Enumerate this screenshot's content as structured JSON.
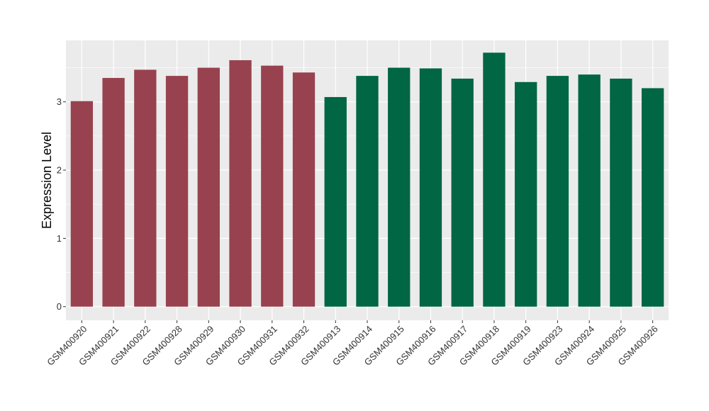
{
  "chart_data": {
    "type": "bar",
    "title": "",
    "xlabel": "",
    "ylabel": "Expression Level",
    "ylim": [
      -0.2,
      3.9
    ],
    "yticks": [
      0,
      1,
      2,
      3
    ],
    "grid": true,
    "legend": "none",
    "categories": [
      "GSM400920",
      "GSM400921",
      "GSM400922",
      "GSM400928",
      "GSM400929",
      "GSM400930",
      "GSM400931",
      "GSM400932",
      "GSM400913",
      "GSM400914",
      "GSM400915",
      "GSM400916",
      "GSM400917",
      "GSM400918",
      "GSM400919",
      "GSM400923",
      "GSM400924",
      "GSM400925",
      "GSM400926"
    ],
    "values": [
      3.01,
      3.35,
      3.47,
      3.38,
      3.5,
      3.61,
      3.53,
      3.43,
      3.07,
      3.38,
      3.5,
      3.49,
      3.34,
      3.72,
      3.29,
      3.38,
      3.4,
      3.34,
      3.2
    ],
    "group_colors": [
      "#98424f",
      "#98424f",
      "#98424f",
      "#98424f",
      "#98424f",
      "#98424f",
      "#98424f",
      "#98424f",
      "#006644",
      "#006644",
      "#006644",
      "#006644",
      "#006644",
      "#006644",
      "#006644",
      "#006644",
      "#006644",
      "#006644",
      "#006644"
    ],
    "panel_background": "#ebebeb",
    "grid_color": "#ffffff"
  }
}
